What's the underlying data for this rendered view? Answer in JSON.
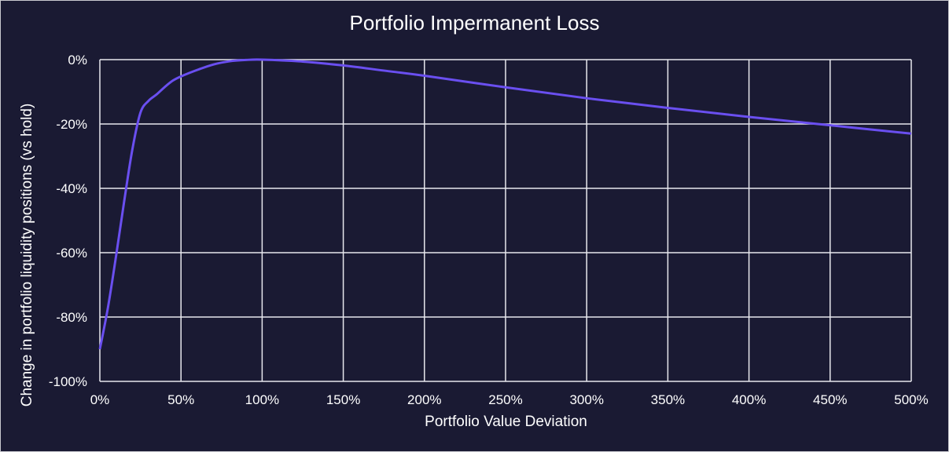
{
  "chart_data": {
    "type": "line",
    "title": "Portfolio Impermanent Loss",
    "xlabel": "Portfolio Value Deviation",
    "ylabel": "Change in portfolio liquidity positions (vs hold)",
    "xlim": [
      0,
      500
    ],
    "ylim": [
      -100,
      0
    ],
    "x_tick_labels": [
      "0%",
      "50%",
      "100%",
      "150%",
      "200%",
      "250%",
      "300%",
      "350%",
      "400%",
      "450%",
      "500%"
    ],
    "y_tick_labels": [
      "0%",
      "-20%",
      "-40%",
      "-60%",
      "-80%",
      "-100%"
    ],
    "grid": true,
    "series": [
      {
        "color": "#6a4ff0",
        "x": [
          0,
          5,
          10,
          15,
          20,
          25,
          30,
          35,
          40,
          45,
          50,
          60,
          70,
          80,
          90,
          100,
          125,
          150,
          175,
          200,
          250,
          300,
          350,
          400,
          450,
          500
        ],
        "y": [
          -90,
          -77,
          -61,
          -44,
          -28,
          -16.5,
          -12.8,
          -10.8,
          -8.5,
          -6.5,
          -5.2,
          -3.2,
          -1.5,
          -0.5,
          -0.1,
          0,
          -0.6,
          -1.8,
          -3.4,
          -5.0,
          -8.6,
          -12.0,
          -15.0,
          -17.8,
          -20.4,
          -23
        ]
      }
    ]
  }
}
